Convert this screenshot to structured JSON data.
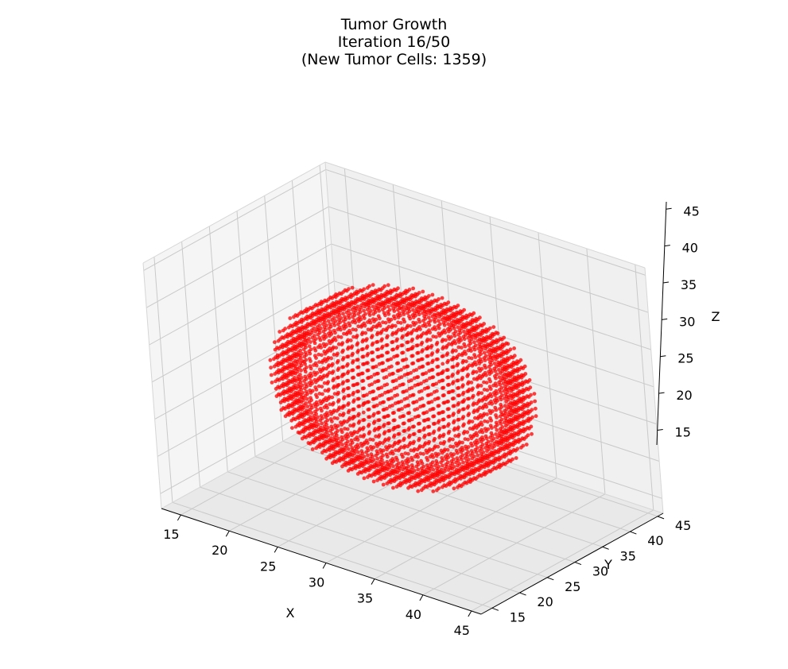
{
  "chart_data": {
    "type": "scatter",
    "projection": "3d",
    "title_lines": [
      "Tumor Growth",
      "Iteration 16/50",
      "(New Tumor Cells: 1359)"
    ],
    "xlabel": "X",
    "ylabel": "Y",
    "zlabel": "Z",
    "xticks": [
      15,
      20,
      25,
      30,
      35,
      40,
      45
    ],
    "yticks": [
      15,
      20,
      25,
      30,
      35,
      40,
      45
    ],
    "zticks": [
      15,
      20,
      25,
      30,
      35,
      40,
      45
    ],
    "xlim": [
      13,
      46
    ],
    "ylim": [
      13,
      46
    ],
    "zlim": [
      13,
      46
    ],
    "grid": true,
    "marker_color": "#ff0000",
    "series": [
      {
        "center": [
          29.5,
          29.5,
          29.5
        ],
        "radius": 12,
        "grid_spacing": 1
      }
    ]
  }
}
